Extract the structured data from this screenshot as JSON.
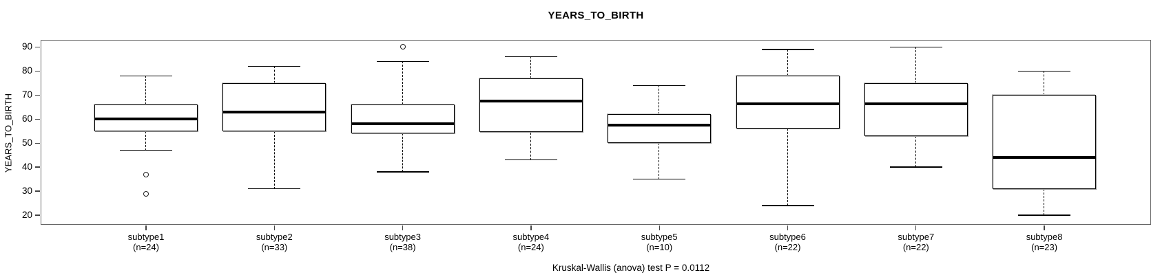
{
  "chart_data": {
    "type": "boxplot",
    "title": "YEARS_TO_BIRTH",
    "ylabel": "YEARS_TO_BIRTH",
    "footer": "Kruskal-Wallis (anova) test P = 0.0112",
    "yticks": [
      20,
      30,
      40,
      50,
      60,
      70,
      80,
      90
    ],
    "ylim": [
      16,
      93
    ],
    "grid": false,
    "groups": [
      {
        "label": "subtype1",
        "n_label": "(n=24)",
        "low": 47,
        "q1": 55,
        "median": 60,
        "q3": 66,
        "high": 78,
        "outliers": [
          37,
          29
        ]
      },
      {
        "label": "subtype2",
        "n_label": "(n=33)",
        "low": 31,
        "q1": 55,
        "median": 63,
        "q3": 75,
        "high": 82,
        "outliers": []
      },
      {
        "label": "subtype3",
        "n_label": "(n=38)",
        "low": 38,
        "q1": 54,
        "median": 58,
        "q3": 66,
        "high": 84,
        "outliers": [
          90
        ]
      },
      {
        "label": "subtype4",
        "n_label": "(n=24)",
        "low": 43,
        "q1": 54.5,
        "median": 67.5,
        "q3": 77,
        "high": 86,
        "outliers": []
      },
      {
        "label": "subtype5",
        "n_label": "(n=10)",
        "low": 35,
        "q1": 50,
        "median": 57.5,
        "q3": 62,
        "high": 74,
        "outliers": []
      },
      {
        "label": "subtype6",
        "n_label": "(n=22)",
        "low": 24,
        "q1": 56,
        "median": 66.5,
        "q3": 78,
        "high": 89,
        "outliers": []
      },
      {
        "label": "subtype7",
        "n_label": "(n=22)",
        "low": 40,
        "q1": 53,
        "median": 66.5,
        "q3": 75,
        "high": 90,
        "outliers": []
      },
      {
        "label": "subtype8",
        "n_label": "(n=23)",
        "low": 20,
        "q1": 31,
        "median": 44,
        "q3": 70,
        "high": 80,
        "outliers": []
      }
    ]
  },
  "colors": {
    "line": "#000000",
    "frame": "#666666",
    "background": "#ffffff"
  }
}
